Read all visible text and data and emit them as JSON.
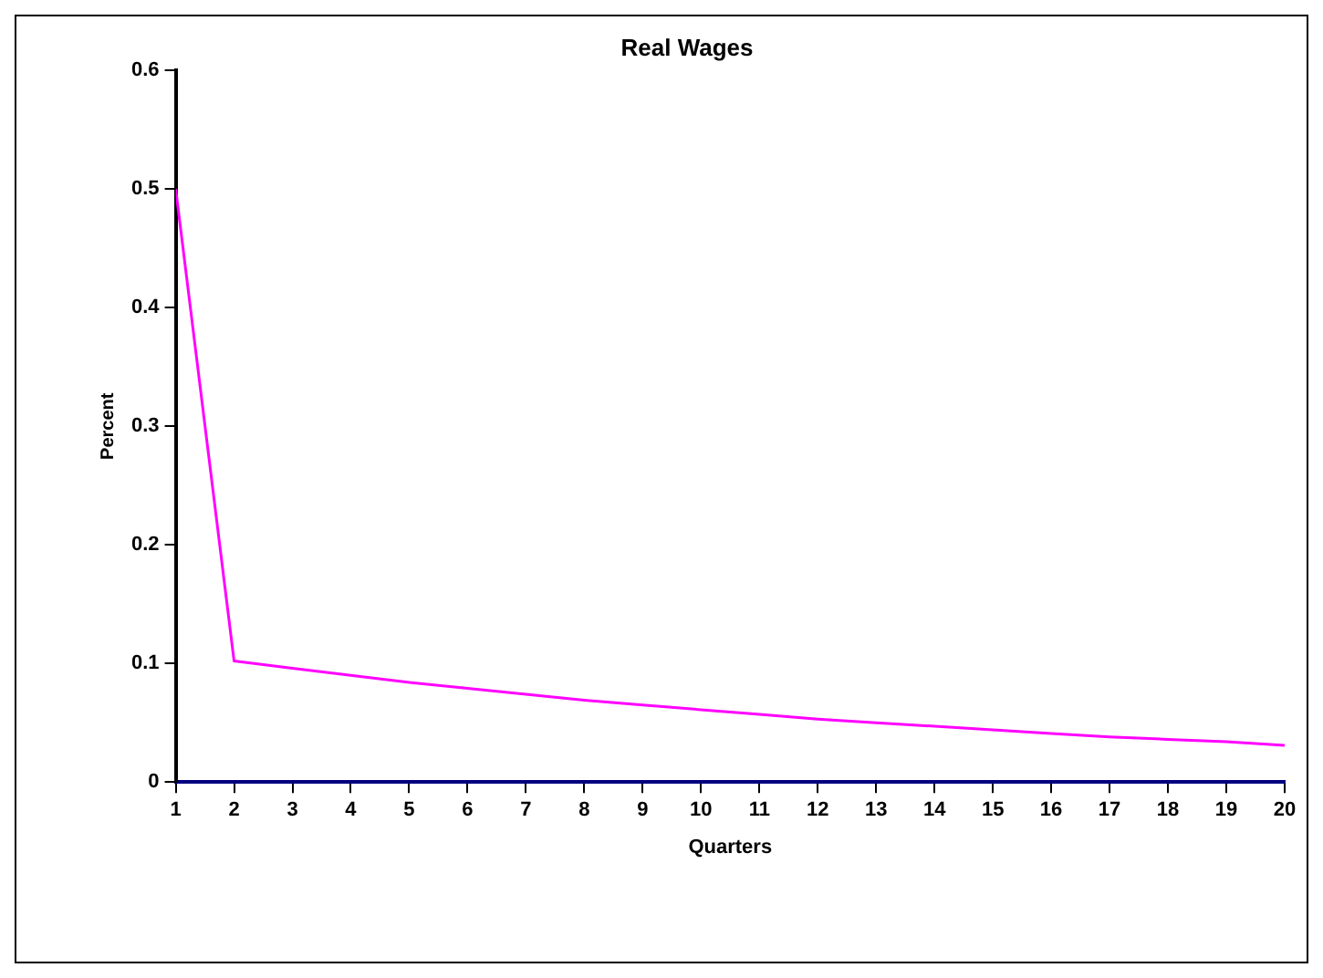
{
  "chart_data": {
    "type": "line",
    "title": "Real Wages",
    "xlabel": "Quarters",
    "ylabel": "Percent",
    "x": [
      1,
      2,
      3,
      4,
      5,
      6,
      7,
      8,
      9,
      10,
      11,
      12,
      13,
      14,
      15,
      16,
      17,
      18,
      19,
      20
    ],
    "series": [
      {
        "color": "#ff00ff",
        "values": [
          0.5,
          0.102,
          0.096,
          0.09,
          0.084,
          0.079,
          0.074,
          0.069,
          0.065,
          0.061,
          0.057,
          0.053,
          0.05,
          0.047,
          0.044,
          0.041,
          0.038,
          0.036,
          0.034,
          0.031
        ]
      }
    ],
    "xlim": [
      1,
      20
    ],
    "xticks": [
      1,
      2,
      3,
      4,
      5,
      6,
      7,
      8,
      9,
      10,
      11,
      12,
      13,
      14,
      15,
      16,
      17,
      18,
      19,
      20
    ],
    "ylim": [
      0,
      0.6
    ],
    "yticks": [
      0,
      0.1,
      0.2,
      0.3,
      0.4,
      0.5,
      0.6
    ],
    "grid": false,
    "legend": false,
    "marker": "none",
    "line_style": "solid"
  }
}
